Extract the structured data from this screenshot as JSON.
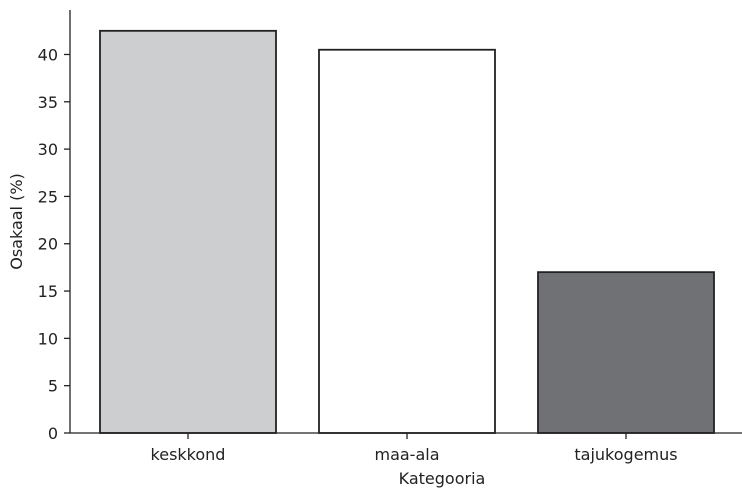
{
  "chart_data": {
    "type": "bar",
    "categories": [
      "keskkond",
      "maa-ala",
      "tajukogemus"
    ],
    "values": [
      42.5,
      40.5,
      17.0
    ],
    "xlabel": "Kategooria",
    "ylabel": "Osakaal (%)",
    "ylim": [
      0,
      44.7
    ],
    "yticks": [
      0,
      5,
      10,
      15,
      20,
      25,
      30,
      35,
      40
    ],
    "grid": false,
    "colors": [
      "#cdced0",
      "#ffffff",
      "#707174"
    ],
    "edge_color": "#222222"
  }
}
